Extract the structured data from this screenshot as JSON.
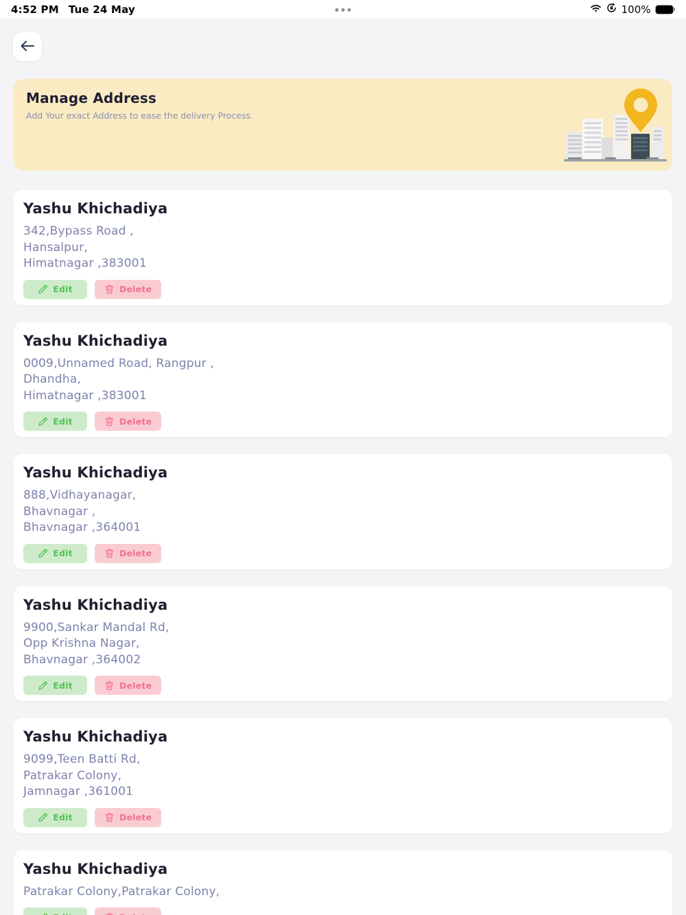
{
  "status_bar": {
    "time": "4:52 PM",
    "date": "Tue 24 May",
    "battery_percent": "100%",
    "icons": [
      "multitask-dots",
      "wifi",
      "orientation-lock",
      "battery"
    ]
  },
  "header": {
    "back_icon": "left-arrow"
  },
  "banner": {
    "title": "Manage Address",
    "subtitle": "Add Your exact Address to ease the delivery Process.",
    "illustration": "city-skyline-with-location-pin"
  },
  "buttons": {
    "edit": "Edit",
    "delete": "Delete"
  },
  "addresses": [
    {
      "name": "Yashu Khichadiya",
      "lines": [
        "342,Bypass Road ,",
        "Hansalpur,",
        "Himatnagar ,383001"
      ]
    },
    {
      "name": "Yashu Khichadiya",
      "lines": [
        "0009,Unnamed Road, Rangpur ,",
        "Dhandha,",
        "Himatnagar ,383001"
      ]
    },
    {
      "name": "Yashu Khichadiya",
      "lines": [
        "888,Vidhayanagar,",
        "Bhavnagar ,",
        "Bhavnagar ,364001"
      ]
    },
    {
      "name": "Yashu Khichadiya",
      "lines": [
        "9900,Sankar Mandal Rd,",
        "Opp Krishna Nagar,",
        "Bhavnagar ,364002"
      ]
    },
    {
      "name": "Yashu Khichadiya",
      "lines": [
        "9099,Teen Batti Rd,",
        "Patrakar Colony,",
        "Jamnagar ,361001"
      ]
    },
    {
      "name": "Yashu Khichadiya",
      "lines": [
        "Patrakar Colony,Patrakar Colony,"
      ]
    }
  ],
  "colors": {
    "banner_bg": "#FAEBC3",
    "addr_color": "#7D82AE",
    "edit_bg": "#CDEBCA",
    "edit_text": "#56C156",
    "delete_bg": "#F9CCD3",
    "delete_text": "#F2718F",
    "pin": "#F2B71E",
    "page_bg": "#F4F4F6"
  }
}
